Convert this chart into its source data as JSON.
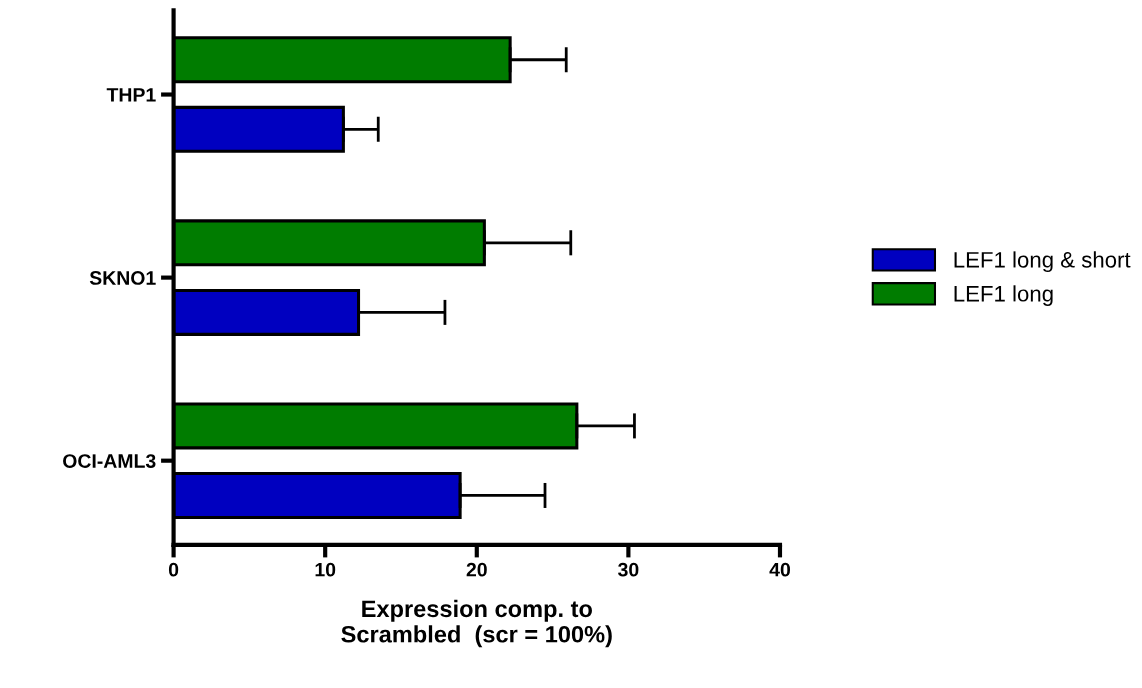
{
  "chart_data": {
    "type": "bar",
    "orientation": "horizontal",
    "categories": [
      "THP1",
      "SKNO1",
      "OCI-AML3"
    ],
    "xlabel": "Expression comp. to\nScrambled  (scr = 100%)",
    "xlim": [
      0,
      40
    ],
    "xticks": [
      0,
      10,
      20,
      30,
      40
    ],
    "grid": false,
    "legend": "right",
    "series": [
      {
        "name": "LEF1 long & short",
        "color": "#0000c0",
        "values": [
          11.2,
          12.2,
          18.9
        ],
        "errors": [
          [
            11.2,
            13.5
          ],
          [
            12.2,
            17.9
          ],
          [
            18.9,
            24.5
          ]
        ]
      },
      {
        "name": "LEF1 long",
        "color": "#007c00",
        "values": [
          22.2,
          20.5,
          26.6
        ],
        "errors": [
          [
            22.2,
            25.9
          ],
          [
            20.5,
            26.2
          ],
          [
            26.6,
            30.4
          ]
        ]
      }
    ]
  }
}
